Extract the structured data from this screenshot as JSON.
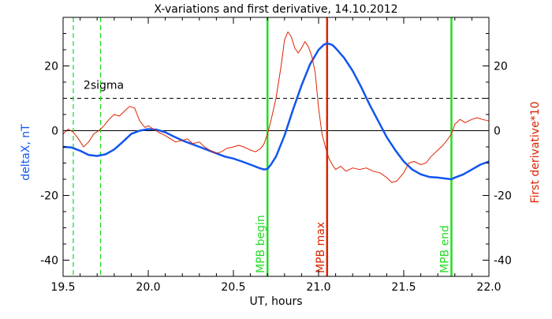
{
  "chart_data": {
    "type": "line",
    "title": "X-variations and first derivative, 14.10.2012",
    "xlabel": "UT, hours",
    "ylabel_left": "deltaX, nT",
    "ylabel_right": "First derivative*10",
    "xlim": [
      19.5,
      22.0
    ],
    "ylim": [
      -45,
      35
    ],
    "x_ticks": [
      19.5,
      20.0,
      20.5,
      21.0,
      21.5,
      22.0
    ],
    "x_tick_labels": [
      "19.5",
      "20.0",
      "20.5",
      "21.0",
      "21.5",
      "22.0"
    ],
    "y_ticks": [
      -40,
      -20,
      0,
      20
    ],
    "y_tick_labels": [
      "-40",
      "-20",
      "0",
      "20"
    ],
    "grid": false,
    "colors": {
      "deltaX": "#1155ee",
      "derivative": "#dd2200",
      "mpb_lines": "#22dd22",
      "mpb_max_line": "#dd2200",
      "sigma_line": "#000000",
      "zero_line": "#000000",
      "dashed_green": "#22dd22"
    },
    "series": [
      {
        "key": "deltaX",
        "style": "thick",
        "x": [
          19.5,
          19.55,
          19.6,
          19.65,
          19.7,
          19.75,
          19.8,
          19.85,
          19.9,
          19.95,
          20.0,
          20.05,
          20.1,
          20.15,
          20.2,
          20.25,
          20.3,
          20.35,
          20.4,
          20.45,
          20.5,
          20.55,
          20.6,
          20.65,
          20.68,
          20.7,
          20.72,
          20.75,
          20.8,
          20.85,
          20.9,
          20.95,
          21.0,
          21.03,
          21.05,
          21.08,
          21.1,
          21.15,
          21.2,
          21.25,
          21.3,
          21.35,
          21.4,
          21.45,
          21.5,
          21.55,
          21.6,
          21.65,
          21.7,
          21.75,
          21.78,
          21.8,
          21.85,
          21.9,
          21.95,
          22.0
        ],
        "y": [
          -5.0,
          -5.2,
          -6.2,
          -7.5,
          -7.8,
          -7.3,
          -5.8,
          -3.5,
          -1.0,
          0.0,
          0.5,
          0.3,
          -0.5,
          -1.8,
          -3.0,
          -4.0,
          -5.0,
          -6.0,
          -7.0,
          -8.0,
          -8.6,
          -9.5,
          -10.5,
          -11.5,
          -12.0,
          -11.8,
          -10.5,
          -8.0,
          -1.5,
          6.5,
          14.0,
          20.5,
          25.0,
          26.5,
          27.0,
          26.5,
          25.5,
          22.5,
          18.5,
          13.5,
          8.0,
          3.0,
          -2.0,
          -6.0,
          -9.5,
          -12.0,
          -13.5,
          -14.3,
          -14.5,
          -14.8,
          -15.0,
          -14.5,
          -13.5,
          -12.0,
          -10.5,
          -9.5
        ]
      },
      {
        "key": "derivative",
        "style": "thin",
        "x": [
          19.5,
          19.53,
          19.56,
          19.59,
          19.62,
          19.65,
          19.68,
          19.71,
          19.74,
          19.77,
          19.8,
          19.83,
          19.86,
          19.89,
          19.92,
          19.95,
          19.98,
          20.0,
          20.03,
          20.06,
          20.1,
          20.13,
          20.16,
          20.2,
          20.23,
          20.26,
          20.3,
          20.33,
          20.36,
          20.4,
          20.43,
          20.46,
          20.5,
          20.53,
          20.56,
          20.6,
          20.63,
          20.66,
          20.68,
          20.7,
          20.72,
          20.75,
          20.78,
          20.8,
          20.82,
          20.84,
          20.86,
          20.88,
          20.9,
          20.92,
          20.94,
          20.96,
          20.98,
          21.0,
          21.02,
          21.04,
          21.06,
          21.08,
          21.1,
          21.13,
          21.16,
          21.2,
          21.24,
          21.28,
          21.32,
          21.36,
          21.4,
          21.43,
          21.46,
          21.5,
          21.53,
          21.56,
          21.6,
          21.63,
          21.66,
          21.7,
          21.73,
          21.76,
          21.78,
          21.8,
          21.83,
          21.86,
          21.9,
          21.93,
          21.96,
          22.0
        ],
        "y": [
          -1.0,
          0.5,
          -0.5,
          -2.5,
          -5.0,
          -3.5,
          -1.0,
          0.0,
          1.5,
          3.5,
          5.0,
          4.5,
          6.0,
          7.5,
          7.0,
          3.0,
          1.0,
          1.5,
          0.5,
          -0.5,
          -1.5,
          -2.5,
          -3.5,
          -3.0,
          -2.5,
          -4.0,
          -3.5,
          -5.0,
          -6.0,
          -7.0,
          -6.5,
          -5.5,
          -5.0,
          -4.5,
          -5.0,
          -6.0,
          -6.5,
          -5.5,
          -4.0,
          -1.0,
          3.0,
          10.0,
          20.0,
          28.0,
          30.5,
          29.0,
          25.5,
          24.0,
          25.5,
          27.5,
          26.0,
          23.0,
          18.0,
          7.0,
          -1.0,
          -5.0,
          -8.5,
          -10.5,
          -12.0,
          -11.0,
          -12.5,
          -11.5,
          -12.0,
          -11.5,
          -12.5,
          -13.0,
          -14.5,
          -16.0,
          -15.5,
          -13.0,
          -10.0,
          -9.5,
          -10.5,
          -10.0,
          -8.0,
          -6.0,
          -4.5,
          -2.5,
          -1.0,
          2.0,
          3.5,
          2.5,
          3.5,
          4.0,
          3.5,
          3.0
        ]
      }
    ],
    "horizontal_lines": [
      {
        "key": "zero",
        "y": 0,
        "style": "solid"
      },
      {
        "key": "sigma",
        "y": 10,
        "style": "dashed",
        "label": "2sigma"
      }
    ],
    "vertical_lines": [
      {
        "key": "dash1",
        "x": 19.56,
        "style": "dashed",
        "color_key": "dashed_green",
        "label": ""
      },
      {
        "key": "dash2",
        "x": 19.72,
        "style": "dashed",
        "color_key": "dashed_green",
        "label": ""
      },
      {
        "key": "mpb-begin",
        "x": 20.7,
        "style": "solid",
        "color_key": "mpb_lines",
        "label": "MPB begin"
      },
      {
        "key": "mpb-max",
        "x": 21.05,
        "style": "solid",
        "color_key": "mpb_max_line",
        "label": "MPB max"
      },
      {
        "key": "mpb-end",
        "x": 21.78,
        "style": "solid",
        "color_key": "mpb_lines",
        "label": "MPB end"
      }
    ]
  }
}
